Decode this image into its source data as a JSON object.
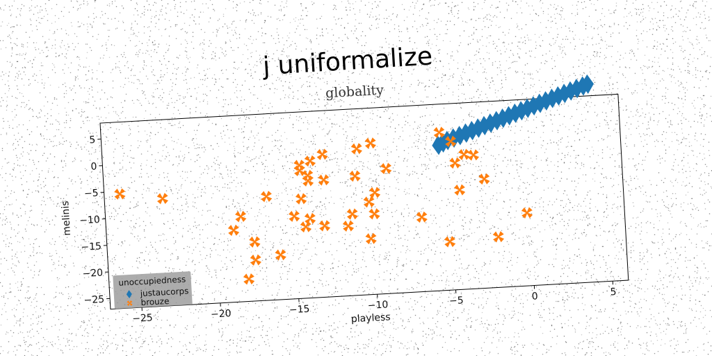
{
  "title": "j uniformalize",
  "subtitle": "globality",
  "colors": {
    "series_1": "#1f77b4",
    "series_2": "#ff7f0e",
    "legend_background": "#9e9e9e"
  },
  "chart_data": {
    "type": "scatter",
    "title": "globality",
    "xlabel": "playless",
    "ylabel": "melinis",
    "xlim": [
      -27,
      6
    ],
    "ylim": [
      -27,
      8
    ],
    "x_ticks": [
      -25,
      -20,
      -15,
      -10,
      -5,
      0,
      5
    ],
    "y_ticks": [
      5,
      0,
      -5,
      -10,
      -15,
      -20,
      -25
    ],
    "legend": {
      "title": "unoccupiedness",
      "placement": "lower-left",
      "entries": [
        "justaucorps",
        "brouze"
      ]
    },
    "series": [
      {
        "name": "justaucorps",
        "marker": "thin_diamond",
        "color": "#1f77b4",
        "points": [
          [
            -5.6,
            0.3
          ],
          [
            -5.3,
            0.7
          ],
          [
            -5.0,
            1.1
          ],
          [
            -4.6,
            1.5
          ],
          [
            -4.2,
            1.9
          ],
          [
            -3.8,
            2.3
          ],
          [
            -3.4,
            2.7
          ],
          [
            -3.0,
            3.1
          ],
          [
            -2.6,
            3.5
          ],
          [
            -2.2,
            3.9
          ],
          [
            -1.8,
            4.3
          ],
          [
            -1.4,
            4.7
          ],
          [
            -1.0,
            5.1
          ],
          [
            -0.6,
            5.5
          ],
          [
            -0.2,
            5.9
          ],
          [
            0.2,
            6.3
          ],
          [
            0.6,
            6.7
          ],
          [
            1.0,
            7.1
          ],
          [
            1.4,
            7.5
          ],
          [
            1.8,
            7.9
          ],
          [
            2.2,
            8.3
          ],
          [
            2.6,
            8.7
          ],
          [
            3.0,
            9.1
          ],
          [
            3.4,
            9.5
          ],
          [
            3.8,
            9.9
          ],
          [
            4.1,
            10.2
          ]
        ]
      },
      {
        "name": "brouze",
        "marker": "X",
        "color": "#ff7f0e",
        "points": [
          [
            -26.0,
            -5.5
          ],
          [
            -23.3,
            -6.8
          ],
          [
            -18.4,
            -11.0
          ],
          [
            -18.9,
            -13.5
          ],
          [
            -17.6,
            -15.9
          ],
          [
            -17.6,
            -19.3
          ],
          [
            -18.1,
            -22.8
          ],
          [
            -16.7,
            -7.5
          ],
          [
            -16.0,
            -18.6
          ],
          [
            -15.0,
            -11.5
          ],
          [
            -14.5,
            -8.3
          ],
          [
            -14.3,
            -13.6
          ],
          [
            -14.0,
            -12.1
          ],
          [
            -14.5,
            -3.0
          ],
          [
            -14.5,
            -2.0
          ],
          [
            -14.0,
            -4.0
          ],
          [
            -14.0,
            -5.0
          ],
          [
            -13.8,
            -1.3
          ],
          [
            -13.1,
            -13.6
          ],
          [
            -13.0,
            -5.0
          ],
          [
            -13.0,
            -0.2
          ],
          [
            -11.6,
            -13.9
          ],
          [
            -11.3,
            -11.7
          ],
          [
            -11.0,
            -4.6
          ],
          [
            -10.8,
            0.5
          ],
          [
            -10.2,
            -16.5
          ],
          [
            -10.2,
            -9.6
          ],
          [
            -9.9,
            -11.9
          ],
          [
            -9.8,
            -7.9
          ],
          [
            -9.9,
            1.4
          ],
          [
            -9.0,
            -3.5
          ],
          [
            -6.9,
            -13.0
          ],
          [
            -5.5,
            2.7
          ],
          [
            -5.2,
            -17.9
          ],
          [
            -4.8,
            0.9
          ],
          [
            -4.6,
            -3.2
          ],
          [
            -4.4,
            -8.3
          ],
          [
            -4.0,
            -1.7
          ],
          [
            -3.4,
            -1.9
          ],
          [
            -2.8,
            -6.5
          ],
          [
            -2.1,
            -17.5
          ],
          [
            -0.2,
            -13.3
          ]
        ]
      }
    ]
  }
}
